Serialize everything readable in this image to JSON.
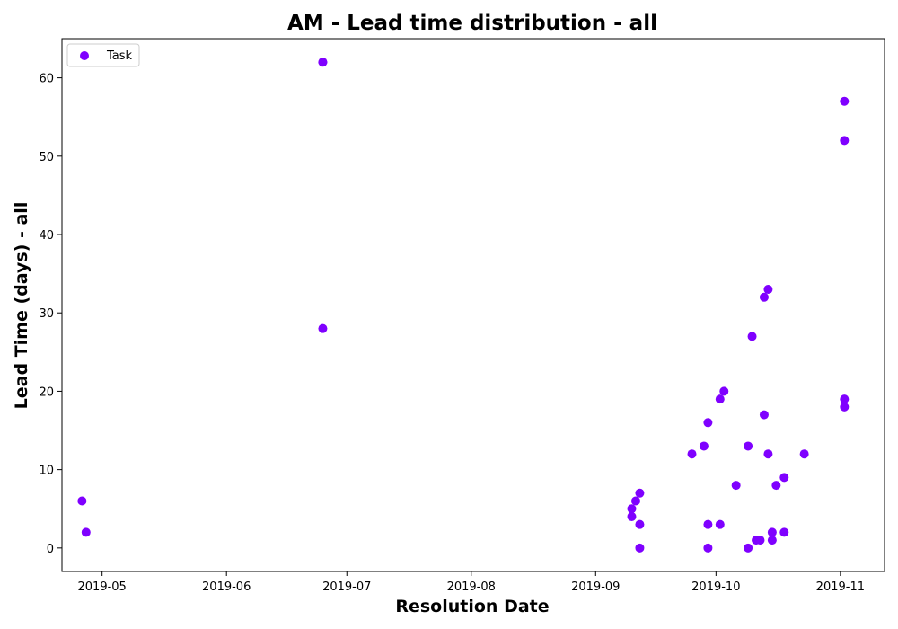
{
  "chart_data": {
    "type": "scatter",
    "title": "AM - Lead time distribution - all",
    "xlabel": "Resolution Date",
    "ylabel": "Lead Time (days) - all",
    "xlim": [
      "2019-04-21",
      "2019-11-12"
    ],
    "ylim": [
      -3,
      65
    ],
    "x_ticks": [
      "2019-05-01",
      "2019-06-01",
      "2019-07-01",
      "2019-08-01",
      "2019-09-01",
      "2019-10-01",
      "2019-11-01"
    ],
    "x_tick_labels": [
      "2019-05",
      "2019-06",
      "2019-07",
      "2019-08",
      "2019-09",
      "2019-10",
      "2019-11"
    ],
    "y_ticks": [
      0,
      10,
      20,
      30,
      40,
      50,
      60
    ],
    "grid": false,
    "legend": {
      "placement": "top-left",
      "entries": [
        "Task"
      ]
    },
    "series": [
      {
        "name": "Task",
        "color": "#7f00ff",
        "points": [
          {
            "x": "2019-04-26",
            "y": 6
          },
          {
            "x": "2019-04-27",
            "y": 2
          },
          {
            "x": "2019-06-25",
            "y": 62
          },
          {
            "x": "2019-06-25",
            "y": 62
          },
          {
            "x": "2019-06-25",
            "y": 28
          },
          {
            "x": "2019-09-10",
            "y": 4
          },
          {
            "x": "2019-09-10",
            "y": 5
          },
          {
            "x": "2019-09-11",
            "y": 6
          },
          {
            "x": "2019-09-12",
            "y": 7
          },
          {
            "x": "2019-09-12",
            "y": 3
          },
          {
            "x": "2019-09-12",
            "y": 0
          },
          {
            "x": "2019-09-25",
            "y": 12
          },
          {
            "x": "2019-09-28",
            "y": 13
          },
          {
            "x": "2019-09-29",
            "y": 16
          },
          {
            "x": "2019-09-29",
            "y": 3
          },
          {
            "x": "2019-09-29",
            "y": 0
          },
          {
            "x": "2019-10-02",
            "y": 19
          },
          {
            "x": "2019-10-02",
            "y": 3
          },
          {
            "x": "2019-10-03",
            "y": 20
          },
          {
            "x": "2019-10-06",
            "y": 8
          },
          {
            "x": "2019-10-09",
            "y": 13
          },
          {
            "x": "2019-10-09",
            "y": 0
          },
          {
            "x": "2019-10-10",
            "y": 27
          },
          {
            "x": "2019-10-11",
            "y": 1
          },
          {
            "x": "2019-10-12",
            "y": 1
          },
          {
            "x": "2019-10-13",
            "y": 32
          },
          {
            "x": "2019-10-13",
            "y": 17
          },
          {
            "x": "2019-10-14",
            "y": 33
          },
          {
            "x": "2019-10-14",
            "y": 12
          },
          {
            "x": "2019-10-15",
            "y": 2
          },
          {
            "x": "2019-10-15",
            "y": 1
          },
          {
            "x": "2019-10-16",
            "y": 8
          },
          {
            "x": "2019-10-18",
            "y": 9
          },
          {
            "x": "2019-10-18",
            "y": 2
          },
          {
            "x": "2019-10-23",
            "y": 12
          },
          {
            "x": "2019-11-02",
            "y": 57
          },
          {
            "x": "2019-11-02",
            "y": 52
          },
          {
            "x": "2019-11-02",
            "y": 19
          },
          {
            "x": "2019-11-02",
            "y": 18
          }
        ]
      }
    ]
  }
}
